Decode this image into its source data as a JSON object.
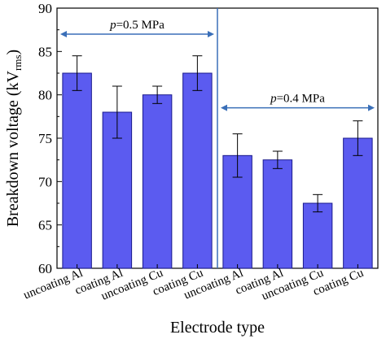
{
  "chart_data": {
    "type": "bar",
    "xlabel": "Electrode type",
    "ylabel": "Breakdown voltage (kV",
    "ylabel_sub": "rms",
    "ylabel_close": ")",
    "ylim": [
      60,
      90
    ],
    "yticks": [
      60,
      65,
      70,
      75,
      80,
      85,
      90
    ],
    "categories": [
      "uncoating Al",
      "coating Al",
      "uncoating Cu",
      "coating Cu",
      "uncoating Al",
      "coating Al",
      "uncoating Cu",
      "coating Cu"
    ],
    "values": [
      82.5,
      78.0,
      80.0,
      82.5,
      73.0,
      72.5,
      67.5,
      75.0
    ],
    "errors": [
      [
        80.5,
        84.5
      ],
      [
        75.0,
        81.0
      ],
      [
        79.0,
        81.0
      ],
      [
        80.5,
        84.5
      ],
      [
        70.5,
        75.5
      ],
      [
        71.5,
        73.5
      ],
      [
        66.5,
        68.5
      ],
      [
        73.0,
        77.0
      ]
    ],
    "bar_color": "#5b5bf0",
    "bar_edge": "#1a1a8c",
    "annotation_color": "#3a6fb8",
    "grid": false,
    "groups": [
      {
        "p_label": "p",
        "value_label": "=0.5 MPa",
        "from_category": 0,
        "to_category": 3,
        "y": 87.0
      },
      {
        "p_label": "p",
        "value_label": "=0.4 MPa",
        "from_category": 4,
        "to_category": 7,
        "y": 78.5
      }
    ]
  }
}
